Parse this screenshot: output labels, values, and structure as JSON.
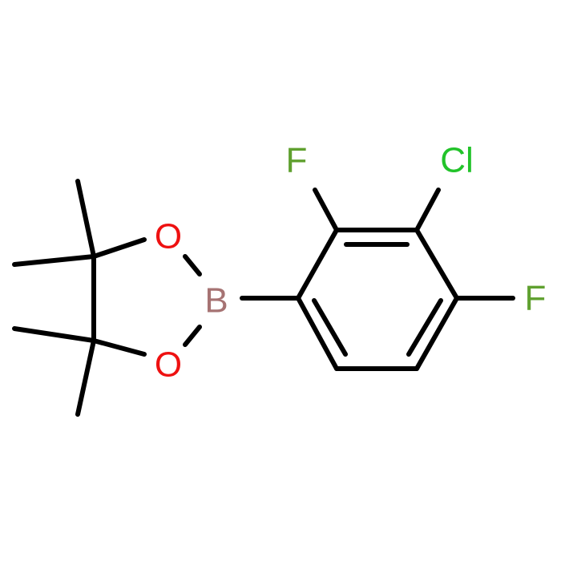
{
  "atoms": {
    "f_top": "F",
    "cl": "Cl",
    "f_right": "F",
    "b": "B",
    "o_top": "O",
    "o_bottom": "O"
  }
}
